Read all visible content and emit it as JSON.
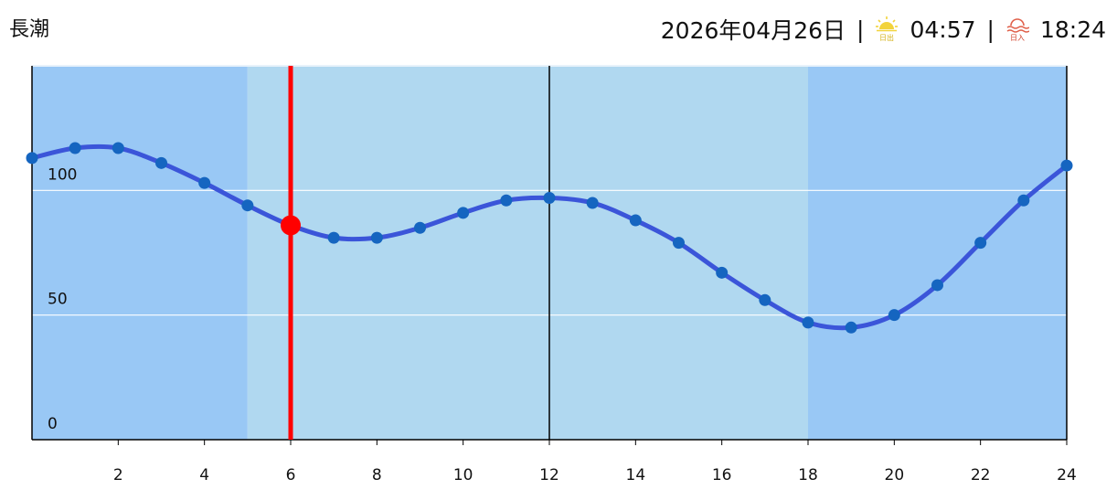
{
  "header": {
    "title": "長潮",
    "date": "2026年04月26日",
    "separator": "|",
    "sunrise": {
      "icon_label": "日出",
      "time": "04:57"
    },
    "sunset": {
      "icon_label": "日入",
      "time": "18:24"
    }
  },
  "chart_data": {
    "type": "line",
    "x": [
      0,
      1,
      2,
      3,
      4,
      5,
      6,
      7,
      8,
      9,
      10,
      11,
      12,
      13,
      14,
      15,
      16,
      17,
      18,
      19,
      20,
      21,
      22,
      23,
      24
    ],
    "values": [
      113,
      117,
      117,
      111,
      103,
      94,
      86,
      81,
      81,
      85,
      91,
      96,
      97,
      95,
      88,
      79,
      67,
      56,
      47,
      45,
      50,
      62,
      79,
      96,
      110
    ],
    "color": "#3b55d9",
    "point_color": "#1565c0",
    "highlight_color": "#ff0000",
    "highlight_x": 6,
    "vlines": [
      12
    ],
    "daylight": [
      5,
      18
    ],
    "day_color": "#b0d8f0",
    "night_color": "#99c8f5",
    "xlim": [
      0,
      24
    ],
    "ylim": [
      0,
      150
    ],
    "xticks": [
      2,
      4,
      6,
      8,
      10,
      12,
      14,
      16,
      18,
      20,
      22,
      24
    ],
    "yticks": [
      0,
      50,
      100
    ],
    "grid": true
  }
}
